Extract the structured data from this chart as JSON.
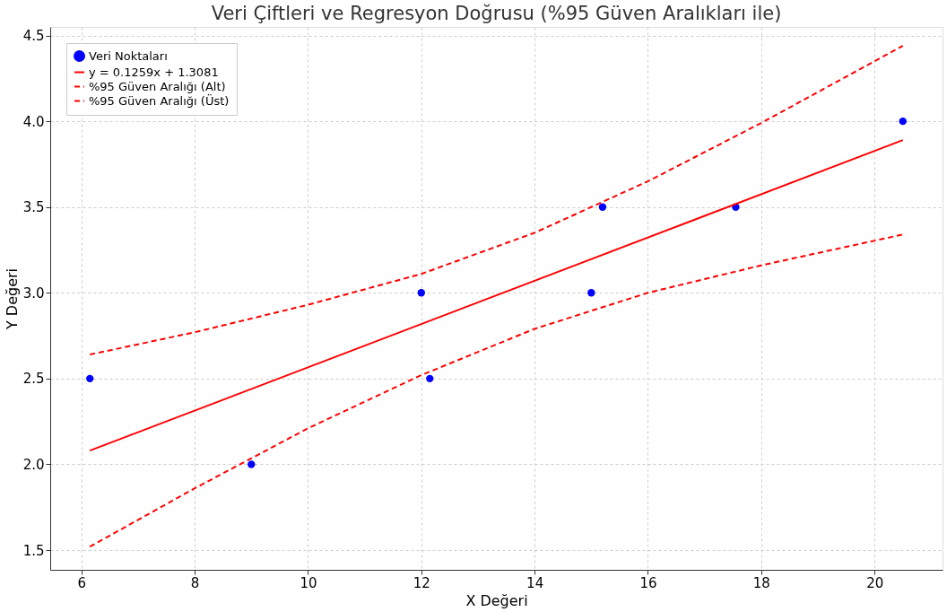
{
  "chart_data": {
    "type": "scatter",
    "title": "Veri Çiftleri ve Regresyon Doğrusu (%95 Güven Aralıkları ile)",
    "xlabel": "X Değeri",
    "ylabel": "Y Değeri",
    "xlim": [
      5.45,
      21.2
    ],
    "ylim": [
      1.385,
      4.55
    ],
    "xticks": [
      6,
      8,
      10,
      12,
      14,
      16,
      18,
      20
    ],
    "yticks": [
      1.5,
      {
        "value": 2,
        "label": "2.0"
      },
      2.5,
      {
        "value": 3,
        "label": "3.0"
      },
      3.5,
      {
        "value": 4,
        "label": "4.0"
      },
      4.5
    ],
    "grid": true,
    "legend": "top left",
    "series": [
      {
        "name": "Veri Noktaları",
        "type": "scatter",
        "marker": "circle",
        "color": "#0000ff",
        "x": [
          6.15,
          9,
          12,
          12.15,
          15,
          15.2,
          17.55,
          20.5
        ],
        "values": [
          2.5,
          2.0,
          3.0,
          2.5,
          3.0,
          3.5,
          3.5,
          4.0
        ]
      },
      {
        "name": "y = 0.1259x + 1.3081",
        "type": "line",
        "line_style": "solid",
        "color": "#ff0000",
        "x": [
          6.15,
          20.5
        ],
        "values": [
          2.08,
          3.89
        ]
      },
      {
        "name": "%95 Güven Aralığı (Alt)",
        "type": "line",
        "line_style": "dashed",
        "color": "#ff0000",
        "x": [
          6.15,
          8,
          10,
          12,
          14,
          16,
          18,
          20.5
        ],
        "values": [
          1.52,
          1.86,
          2.21,
          2.52,
          2.79,
          3.0,
          3.16,
          3.34
        ]
      },
      {
        "name": "%95 Güven Aralığı (Üst)",
        "type": "line",
        "line_style": "dashed",
        "color": "#ff0000",
        "x": [
          6.15,
          8,
          10,
          12,
          14,
          16,
          18,
          20.5
        ],
        "values": [
          2.64,
          2.77,
          2.93,
          3.11,
          3.35,
          3.65,
          3.99,
          4.44
        ]
      }
    ]
  }
}
